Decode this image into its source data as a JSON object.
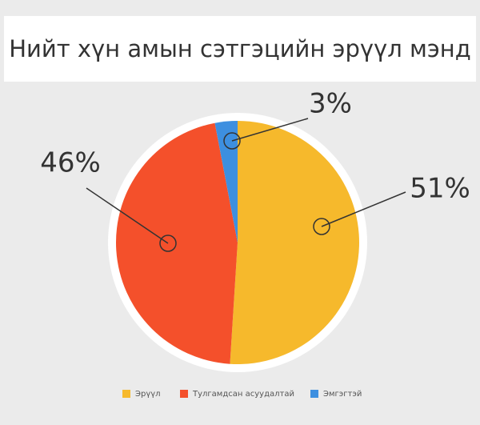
{
  "chart_data": {
    "type": "pie",
    "title": "Нийт хүн амын сэтгэцийн эрүүл мэнд",
    "categories": [
      "Эрүүл",
      "Тулгамдсан асуудалтай",
      "Эмгэгтэй"
    ],
    "values": [
      51,
      46,
      3
    ],
    "value_labels": [
      "51%",
      "46%",
      "3%"
    ],
    "colors": [
      "#f6b92c",
      "#f4502b",
      "#3d8fe0"
    ],
    "legend": "bottom"
  }
}
